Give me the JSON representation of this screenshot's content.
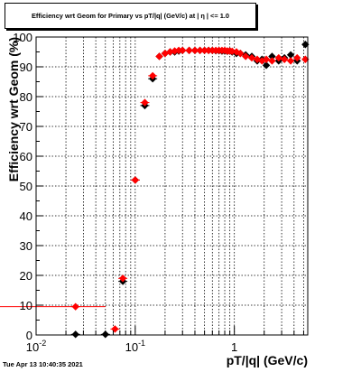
{
  "title": "Efficiency wrt Geom for Primary vs pT/|q| (GeV/c) at | η | <= 1.0",
  "timestamp": "Tue Apr 13 10:40:35 2021",
  "chart_data": {
    "type": "scatter",
    "title": "Efficiency wrt Geom for Primary vs pT/|q| (GeV/c) at | η | <= 1.0",
    "xlabel": "pT/|q| (GeV/c)",
    "ylabel": "Efficiency wrt Geom (%)",
    "x_scale": "log",
    "xlim": [
      0.01,
      5.5
    ],
    "ylim": [
      0,
      100
    ],
    "grid": true,
    "x_ticks": [
      {
        "value": 0.01,
        "label": "10",
        "exp": "-2"
      },
      {
        "value": 0.1,
        "label": "10",
        "exp": "-1"
      },
      {
        "value": 1,
        "label": "1",
        "exp": ""
      }
    ],
    "y_ticks": [
      "0",
      "10",
      "20",
      "30",
      "40",
      "50",
      "60",
      "70",
      "80",
      "90",
      "100"
    ],
    "colors": {
      "black_series": "#000000",
      "red_series": "#ff0000",
      "grid": "#000000"
    },
    "series": [
      {
        "color": "#000000",
        "points": [
          {
            "x": 0.025,
            "y": 0.2
          },
          {
            "x": 0.05,
            "y": 0.2
          },
          {
            "x": 0.075,
            "y": 18
          },
          {
            "x": 0.1,
            "y": 52
          },
          {
            "x": 0.125,
            "y": 77
          },
          {
            "x": 0.15,
            "y": 86
          },
          {
            "x": 0.175,
            "y": 93.5
          },
          {
            "x": 0.2,
            "y": 94.5
          },
          {
            "x": 0.225,
            "y": 95
          },
          {
            "x": 0.25,
            "y": 95
          },
          {
            "x": 0.275,
            "y": 95.3
          },
          {
            "x": 0.3,
            "y": 95.5
          },
          {
            "x": 0.35,
            "y": 95.5
          },
          {
            "x": 0.4,
            "y": 95.5
          },
          {
            "x": 0.45,
            "y": 95.5
          },
          {
            "x": 0.5,
            "y": 95.5
          },
          {
            "x": 0.55,
            "y": 95.5
          },
          {
            "x": 0.6,
            "y": 95.5
          },
          {
            "x": 0.65,
            "y": 95.4
          },
          {
            "x": 0.7,
            "y": 95.4
          },
          {
            "x": 0.75,
            "y": 95.3
          },
          {
            "x": 0.8,
            "y": 95.3
          },
          {
            "x": 0.85,
            "y": 95.2
          },
          {
            "x": 0.9,
            "y": 95.3
          },
          {
            "x": 0.95,
            "y": 95
          },
          {
            "x": 1.05,
            "y": 94.5
          },
          {
            "x": 1.15,
            "y": 94.5
          },
          {
            "x": 1.3,
            "y": 94
          },
          {
            "x": 1.5,
            "y": 93.5
          },
          {
            "x": 1.7,
            "y": 92
          },
          {
            "x": 1.9,
            "y": 92.5
          },
          {
            "x": 2.1,
            "y": 90.5
          },
          {
            "x": 2.4,
            "y": 93.5
          },
          {
            "x": 2.8,
            "y": 92
          },
          {
            "x": 3.2,
            "y": 93
          },
          {
            "x": 3.7,
            "y": 94
          },
          {
            "x": 4.3,
            "y": 92
          },
          {
            "x": 5.2,
            "y": 97.5
          }
        ]
      },
      {
        "color": "#ff0000",
        "points": [
          {
            "x": 0.025,
            "y": 9.5
          },
          {
            "x": 0.0625,
            "y": 2
          },
          {
            "x": 0.075,
            "y": 19
          },
          {
            "x": 0.1,
            "y": 52
          },
          {
            "x": 0.125,
            "y": 78
          },
          {
            "x": 0.15,
            "y": 87
          },
          {
            "x": 0.175,
            "y": 93.5
          },
          {
            "x": 0.2,
            "y": 94.5
          },
          {
            "x": 0.225,
            "y": 95
          },
          {
            "x": 0.25,
            "y": 95.3
          },
          {
            "x": 0.275,
            "y": 95.5
          },
          {
            "x": 0.3,
            "y": 95.5
          },
          {
            "x": 0.35,
            "y": 95.5
          },
          {
            "x": 0.4,
            "y": 95.5
          },
          {
            "x": 0.45,
            "y": 95.5
          },
          {
            "x": 0.5,
            "y": 95.5
          },
          {
            "x": 0.55,
            "y": 95.5
          },
          {
            "x": 0.6,
            "y": 95.5
          },
          {
            "x": 0.65,
            "y": 95.5
          },
          {
            "x": 0.7,
            "y": 95.5
          },
          {
            "x": 0.75,
            "y": 95.5
          },
          {
            "x": 0.8,
            "y": 95.5
          },
          {
            "x": 0.85,
            "y": 95.3
          },
          {
            "x": 0.9,
            "y": 95.3
          },
          {
            "x": 0.95,
            "y": 95.2
          },
          {
            "x": 1.05,
            "y": 95
          },
          {
            "x": 1.15,
            "y": 94.5
          },
          {
            "x": 1.3,
            "y": 93.5
          },
          {
            "x": 1.5,
            "y": 93
          },
          {
            "x": 1.7,
            "y": 92.5
          },
          {
            "x": 1.9,
            "y": 92
          },
          {
            "x": 2.1,
            "y": 92.5
          },
          {
            "x": 2.4,
            "y": 92
          },
          {
            "x": 2.8,
            "y": 93
          },
          {
            "x": 3.2,
            "y": 92.5
          },
          {
            "x": 3.7,
            "y": 92
          },
          {
            "x": 4.3,
            "y": 93
          },
          {
            "x": 5.2,
            "y": 92.5
          }
        ]
      }
    ]
  }
}
